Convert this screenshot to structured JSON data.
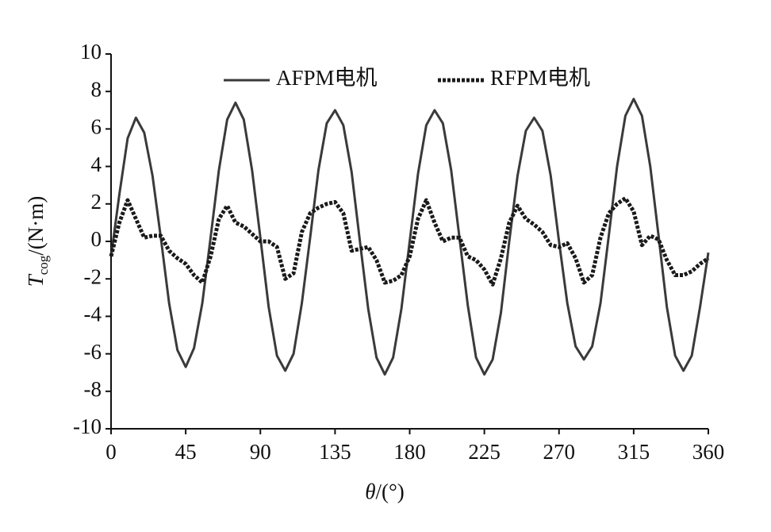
{
  "chart_data": {
    "type": "line",
    "x_label": {
      "symbol": "θ",
      "unit": "/(°)"
    },
    "y_label": {
      "symbol": "T",
      "subscript": "cog",
      "unit": "/(N·m)"
    },
    "x": [
      0,
      5,
      10,
      15,
      20,
      25,
      30,
      35,
      40,
      45,
      50,
      55,
      60,
      65,
      70,
      75,
      80,
      85,
      90,
      95,
      100,
      105,
      110,
      115,
      120,
      125,
      130,
      135,
      140,
      145,
      150,
      155,
      160,
      165,
      170,
      175,
      180,
      185,
      190,
      195,
      200,
      205,
      210,
      215,
      220,
      225,
      230,
      235,
      240,
      245,
      250,
      255,
      260,
      265,
      270,
      275,
      280,
      285,
      290,
      295,
      300,
      305,
      310,
      315,
      320,
      325,
      330,
      335,
      340,
      345,
      350,
      355,
      360
    ],
    "series": [
      {
        "name": "AFPM电机",
        "color": "#3a3a3a",
        "style": "solid",
        "values": [
          -0.8,
          2.5,
          5.5,
          6.6,
          5.8,
          3.5,
          0.2,
          -3.3,
          -5.8,
          -6.7,
          -5.7,
          -3.3,
          0.2,
          3.8,
          6.5,
          7.4,
          6.5,
          3.8,
          0.2,
          -3.5,
          -6.1,
          -6.9,
          -6.0,
          -3.3,
          0.2,
          3.8,
          6.3,
          7.0,
          6.2,
          3.7,
          0,
          -3.6,
          -6.2,
          -7.1,
          -6.2,
          -3.6,
          0,
          3.6,
          6.2,
          7.0,
          6.3,
          3.8,
          0.2,
          -3.4,
          -6.2,
          -7.1,
          -6.3,
          -3.8,
          0,
          3.5,
          5.9,
          6.6,
          5.9,
          3.5,
          0,
          -3.3,
          -5.6,
          -6.3,
          -5.6,
          -3.3,
          0.3,
          4.0,
          6.7,
          7.6,
          6.7,
          4.0,
          0.3,
          -3.5,
          -6.1,
          -6.9,
          -6.1,
          -3.5,
          -0.6
        ]
      },
      {
        "name": "RFPM电机",
        "color": "#1a1a1a",
        "style": "dotted",
        "values": [
          -0.8,
          1.0,
          2.2,
          1.2,
          0.2,
          0.3,
          0.3,
          -0.5,
          -0.9,
          -1.2,
          -1.8,
          -2.2,
          -0.8,
          1.2,
          1.9,
          1.0,
          0.8,
          0.4,
          0,
          0.0,
          -0.3,
          -2.0,
          -1.7,
          0.5,
          1.5,
          1.8,
          2.0,
          2.1,
          1.5,
          -0.5,
          -0.4,
          -0.3,
          -1.0,
          -2.2,
          -2.1,
          -1.8,
          -0.8,
          1.2,
          2.2,
          1.0,
          0.0,
          0.2,
          0.2,
          -0.8,
          -1.0,
          -1.5,
          -2.3,
          -0.9,
          1.0,
          1.9,
          1.2,
          0.9,
          0.5,
          -0.2,
          -0.3,
          -0.1,
          -0.9,
          -2.2,
          -1.8,
          0.2,
          1.5,
          2.0,
          2.3,
          1.6,
          -0.2,
          0.3,
          0.1,
          -1.0,
          -1.8,
          -1.8,
          -1.6,
          -1.2,
          -0.9
        ]
      }
    ],
    "xlim": [
      0,
      360
    ],
    "xticks": [
      0,
      45,
      90,
      135,
      180,
      225,
      270,
      315,
      360
    ],
    "ylim": [
      -10,
      10
    ],
    "yticks": [
      -10,
      -8,
      -6,
      -4,
      -2,
      0,
      2,
      4,
      6,
      8,
      10
    ],
    "grid": false,
    "legend": "top"
  }
}
